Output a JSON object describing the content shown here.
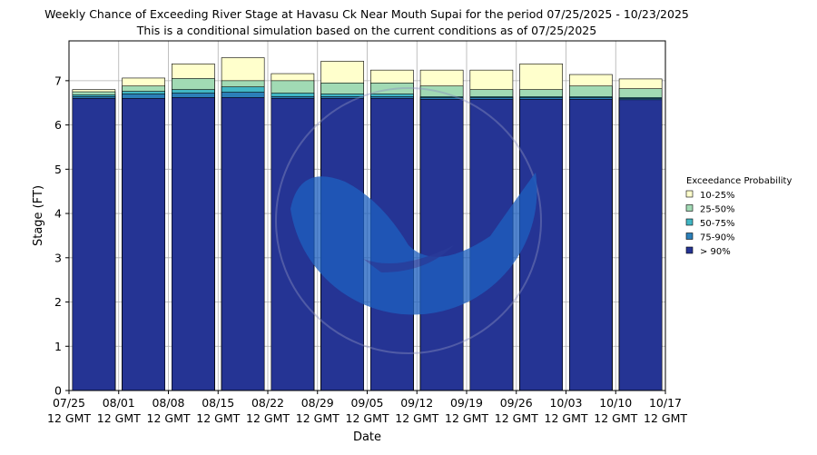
{
  "chart_data": {
    "type": "bar",
    "title": "Weekly Chance of Exceeding River Stage at Havasu Ck Near Mouth Supai for the period 07/25/2025 - 10/23/2025",
    "subtitle": "This is a conditional simulation based on the current conditions as of 07/25/2025",
    "xlabel": "Date",
    "ylabel": "Stage (FT)",
    "ylim": [
      0,
      7.9
    ],
    "yticks": [
      "0",
      "1",
      "2",
      "3",
      "4",
      "5",
      "6",
      "7"
    ],
    "x_tick_labels": [
      [
        "07/25",
        "12 GMT"
      ],
      [
        "08/01",
        "12 GMT"
      ],
      [
        "08/08",
        "12 GMT"
      ],
      [
        "08/15",
        "12 GMT"
      ],
      [
        "08/22",
        "12 GMT"
      ],
      [
        "08/29",
        "12 GMT"
      ],
      [
        "09/05",
        "12 GMT"
      ],
      [
        "09/12",
        "12 GMT"
      ],
      [
        "09/19",
        "12 GMT"
      ],
      [
        "09/26",
        "12 GMT"
      ],
      [
        "10/03",
        "12 GMT"
      ],
      [
        "10/10",
        "12 GMT"
      ],
      [
        "10/17",
        "12 GMT"
      ]
    ],
    "grid": true,
    "legend": {
      "title": "Exceedance Probability",
      "placement": "right",
      "entries": [
        "10-25%",
        "25-50%",
        "50-75%",
        "75-90%",
        "> 90%"
      ]
    },
    "series": [
      {
        "name": "> 90%",
        "color": "#253494",
        "values": [
          6.6,
          6.6,
          6.62,
          6.62,
          6.6,
          6.6,
          6.6,
          6.58,
          6.58,
          6.58,
          6.58,
          6.57
        ]
      },
      {
        "name": "75-90%",
        "color": "#2c7fb8",
        "values": [
          6.64,
          6.7,
          6.72,
          6.74,
          6.64,
          6.64,
          6.64,
          6.62,
          6.62,
          6.62,
          6.62,
          6.6
        ]
      },
      {
        "name": "50-75%",
        "color": "#41b6c4",
        "values": [
          6.68,
          6.76,
          6.8,
          6.86,
          6.72,
          6.7,
          6.7,
          6.64,
          6.64,
          6.64,
          6.64,
          6.62
        ]
      },
      {
        "name": "25-50%",
        "color": "#a1dab4",
        "values": [
          6.75,
          6.88,
          7.05,
          7.0,
          7.0,
          6.95,
          6.95,
          6.88,
          6.8,
          6.8,
          6.88,
          6.82
        ]
      },
      {
        "name": "10-25%",
        "color": "#ffffcc",
        "values": [
          6.8,
          7.06,
          7.38,
          7.52,
          7.16,
          7.44,
          7.24,
          7.24,
          7.24,
          7.38,
          7.14,
          7.04
        ]
      }
    ]
  }
}
